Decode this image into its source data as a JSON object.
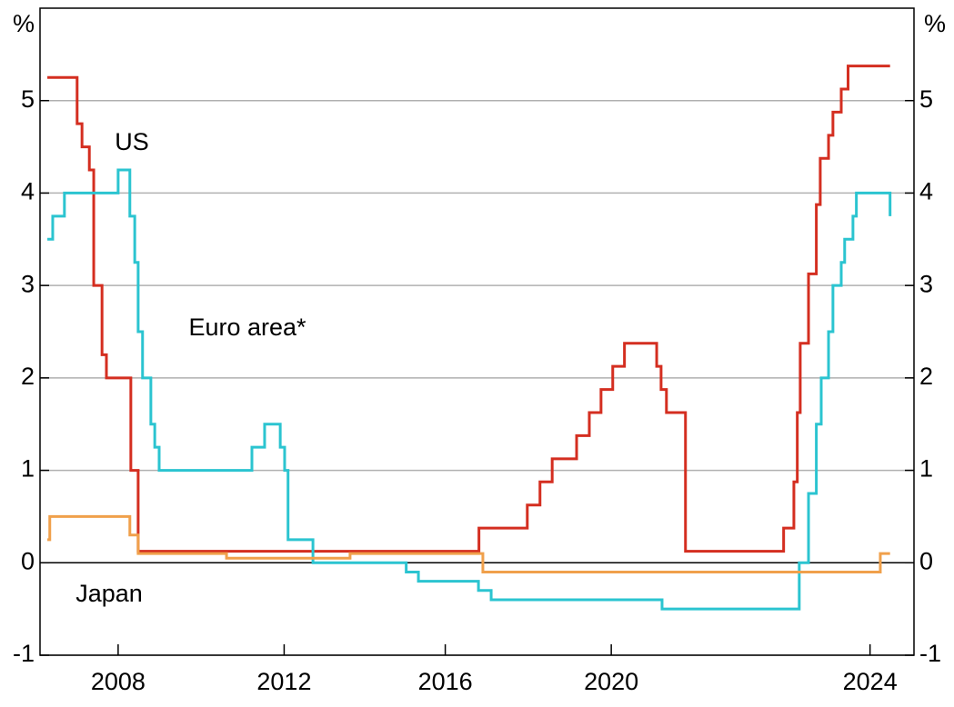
{
  "chart_data": {
    "type": "step",
    "y_axis_label": "%",
    "y2_axis_label": "%",
    "xlim": [
      2007,
      2024.9
    ],
    "xticks": [
      {
        "value": 2008.6,
        "label": "2008"
      },
      {
        "value": 2012,
        "label": "2012"
      },
      {
        "value": 2015.3,
        "label": "2016"
      },
      {
        "value": 2018.7,
        "label": "2020"
      },
      {
        "value": 2024,
        "label": "2024"
      }
    ],
    "ylim": [
      -1,
      6
    ],
    "yticks": [
      -1,
      0,
      1,
      2,
      3,
      4,
      5
    ],
    "grid": true,
    "series": [
      {
        "name": "US",
        "color": "#d42e20",
        "x": [
          2007.15,
          2007.76,
          2007.86,
          2008.01,
          2008.1,
          2008.27,
          2008.36,
          2008.86,
          2009.01,
          2015.99,
          2016.98,
          2017.24,
          2017.49,
          2017.99,
          2018.25,
          2018.49,
          2018.73,
          2018.97,
          2019.63,
          2019.72,
          2019.83,
          2020.22,
          2022.23,
          2022.44,
          2022.51,
          2022.57,
          2022.74,
          2022.9,
          2022.98,
          2023.15,
          2023.24,
          2023.41,
          2023.55,
          2024.41
        ],
        "values": [
          5.25,
          4.75,
          4.5,
          4.25,
          3.0,
          2.25,
          2.0,
          1.0,
          0.125,
          0.375,
          0.625,
          0.875,
          1.125,
          1.375,
          1.625,
          1.875,
          2.125,
          2.375,
          2.125,
          1.875,
          1.625,
          0.125,
          0.375,
          0.875,
          1.625,
          2.375,
          3.125,
          3.875,
          4.375,
          4.625,
          4.875,
          5.125,
          5.375,
          5.375
        ]
      },
      {
        "name": "Euro area*",
        "color": "#2bc4d0",
        "x": [
          2007.15,
          2007.26,
          2007.5,
          2008.6,
          2008.84,
          2008.94,
          2009.01,
          2009.1,
          2009.27,
          2009.35,
          2009.44,
          2011.34,
          2011.6,
          2011.92,
          2012.01,
          2012.08,
          2012.59,
          2014.5,
          2014.75,
          2015.98,
          2016.24,
          2019.74,
          2022.55,
          2022.74,
          2022.9,
          2023.0,
          2023.15,
          2023.24,
          2023.41,
          2023.48,
          2023.65,
          2023.72,
          2024.41
        ],
        "values": [
          3.5,
          3.75,
          4.0,
          4.25,
          3.75,
          3.25,
          2.5,
          2.0,
          1.5,
          1.25,
          1.0,
          1.25,
          1.5,
          1.25,
          1.0,
          0.25,
          0.0,
          -0.1,
          -0.2,
          -0.3,
          -0.4,
          -0.5,
          0.0,
          0.75,
          1.5,
          2.0,
          2.5,
          3.0,
          3.25,
          3.5,
          3.75,
          4.0,
          3.75
        ]
      },
      {
        "name": "Japan",
        "color": "#f0a04b",
        "x": [
          2007.15,
          2007.2,
          2008.84,
          2009.01,
          2010.82,
          2013.35,
          2016.07,
          2024.21,
          2024.41
        ],
        "values": [
          0.25,
          0.5,
          0.3,
          0.1,
          0.05,
          0.1,
          -0.1,
          0.1,
          0.1
        ]
      }
    ]
  }
}
